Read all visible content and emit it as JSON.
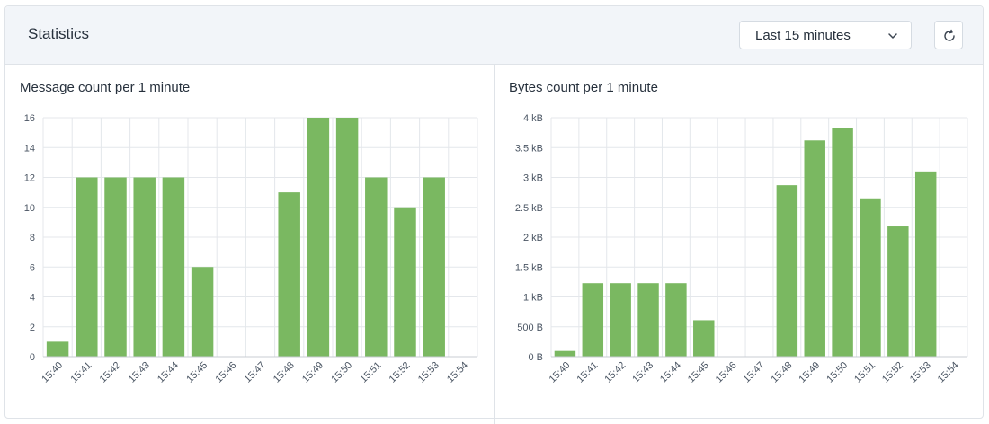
{
  "header": {
    "title": "Statistics",
    "time_range": "Last 15 minutes",
    "time_range_icon": "chevron-down-icon",
    "refresh_icon": "refresh-icon"
  },
  "colors": {
    "bar": "#7ab861",
    "grid": "#e4e7eb",
    "axis": "#4a5563"
  },
  "chart_data": [
    {
      "type": "bar",
      "title": "Message count per 1 minute",
      "categories": [
        "15:40",
        "15:41",
        "15:42",
        "15:43",
        "15:44",
        "15:45",
        "15:46",
        "15:47",
        "15:48",
        "15:49",
        "15:50",
        "15:51",
        "15:52",
        "15:53",
        "15:54"
      ],
      "values": [
        1,
        12,
        12,
        12,
        12,
        6,
        0,
        0,
        11,
        16,
        16,
        12,
        10,
        12,
        0
      ],
      "yticks": [
        0,
        2,
        4,
        6,
        8,
        10,
        12,
        14,
        16
      ],
      "ytick_labels": [
        "0",
        "2",
        "4",
        "6",
        "8",
        "10",
        "12",
        "14",
        "16"
      ],
      "ylim": [
        0,
        16
      ],
      "grid": true
    },
    {
      "type": "bar",
      "title": "Bytes count per 1 minute",
      "categories": [
        "15:40",
        "15:41",
        "15:42",
        "15:43",
        "15:44",
        "15:45",
        "15:46",
        "15:47",
        "15:48",
        "15:49",
        "15:50",
        "15:51",
        "15:52",
        "15:53",
        "15:54"
      ],
      "values": [
        95,
        1230,
        1230,
        1230,
        1230,
        610,
        0,
        0,
        2870,
        3620,
        3830,
        2650,
        2180,
        3100,
        0
      ],
      "yticks": [
        0,
        500,
        1000,
        1500,
        2000,
        2500,
        3000,
        3500,
        4000
      ],
      "ytick_labels": [
        "0 B",
        "500 B",
        "1 kB",
        "1.5 kB",
        "2 kB",
        "2.5 kB",
        "3 kB",
        "3.5 kB",
        "4 kB"
      ],
      "ylim": [
        0,
        4000
      ],
      "grid": true
    }
  ]
}
